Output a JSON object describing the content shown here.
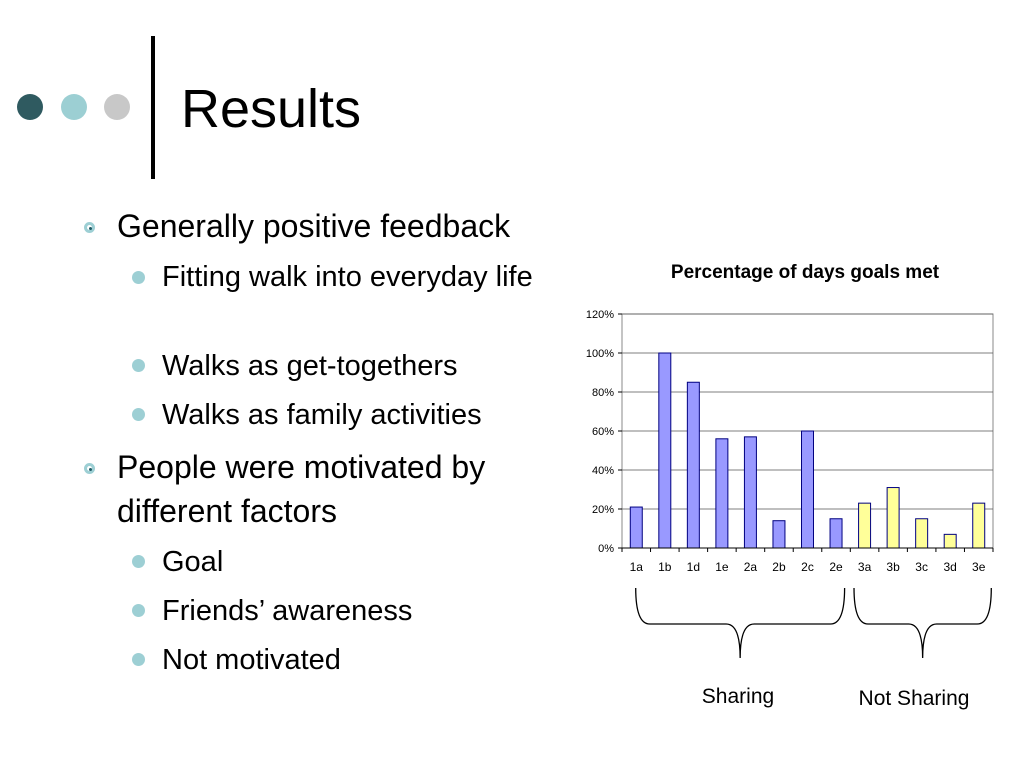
{
  "slide": {
    "title": "Results",
    "nav_dots": [
      {
        "name": "nav-dot-dark",
        "color": "#2f5a60"
      },
      {
        "name": "nav-dot-teal",
        "color": "#9ccfd3"
      },
      {
        "name": "nav-dot-gray",
        "color": "#c8c8c8"
      }
    ],
    "bullets": [
      {
        "text": "Generally positive feedback",
        "sub": [
          "Fitting walk into everyday life",
          "Walks as get-togethers",
          "Walks as family activities"
        ]
      },
      {
        "text": "People were motivated by different factors",
        "sub": [
          "Goal",
          "Friends’ awareness",
          "Not motivated"
        ]
      }
    ],
    "group_labels": {
      "sharing": "Sharing",
      "not_sharing": "Not Sharing"
    }
  },
  "colors": {
    "sharing_bar": "#9999ff",
    "not_sharing_bar": "#ffff99",
    "bar_outline": "#000080",
    "bullet_ring": "#9dcfd4"
  },
  "chart_data": {
    "type": "bar",
    "title": "Percentage of days goals met",
    "xlabel": "",
    "ylabel": "",
    "ylim": [
      0,
      120
    ],
    "yticks": [
      "0%",
      "20%",
      "40%",
      "60%",
      "80%",
      "100%",
      "120%"
    ],
    "grid": true,
    "categories": [
      "1a",
      "1b",
      "1d",
      "1e",
      "2a",
      "2b",
      "2c",
      "2e",
      "3a",
      "3b",
      "3c",
      "3d",
      "3e"
    ],
    "values": [
      21,
      100,
      85,
      56,
      57,
      14,
      60,
      15,
      23,
      31,
      15,
      7,
      23
    ],
    "groups": [
      {
        "label": "Sharing",
        "categories": [
          "1a",
          "1b",
          "1d",
          "1e",
          "2a",
          "2b",
          "2c",
          "2e"
        ]
      },
      {
        "label": "Not Sharing",
        "categories": [
          "3a",
          "3b",
          "3c",
          "3d",
          "3e"
        ]
      }
    ]
  }
}
